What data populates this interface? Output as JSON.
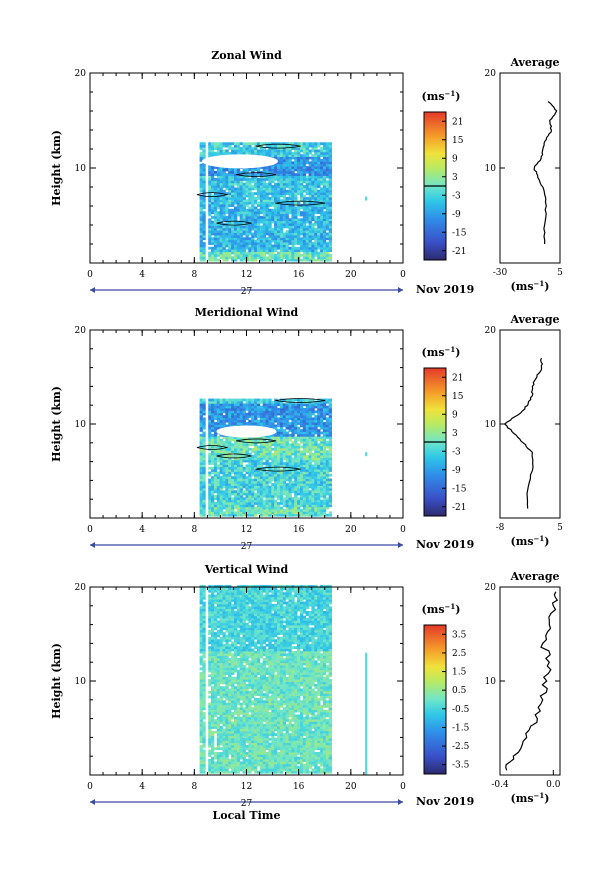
{
  "x_axis": {
    "ticks": [
      "0",
      "4",
      "8",
      "12",
      "16",
      "20",
      "0"
    ],
    "xlim": [
      0,
      24
    ],
    "day_label": "27",
    "date_label": "Nov 2019",
    "label": "Local Time"
  },
  "panels": [
    {
      "title": "Zonal Wind",
      "ylabel": "Height (km)",
      "y_ticks": [
        "20",
        "10"
      ],
      "ylim": [
        0,
        20
      ],
      "colorbar": {
        "unit_label": "(ms⁻¹)",
        "ticks": [
          "21",
          "15",
          "9",
          "3",
          "-3",
          "-9",
          "-15",
          "-21"
        ],
        "range": [
          -24,
          24
        ],
        "contour_level": 0
      },
      "profile": {
        "title": "Average",
        "y_ticks": [
          "20",
          "10"
        ],
        "x_ticks": [
          "-30",
          "5"
        ],
        "xlabel": "(ms⁻¹)",
        "xlim": [
          -30,
          5
        ]
      }
    },
    {
      "title": "Meridional Wind",
      "ylabel": "Height (km)",
      "y_ticks": [
        "20",
        "10"
      ],
      "ylim": [
        0,
        20
      ],
      "colorbar": {
        "unit_label": "(ms⁻¹)",
        "ticks": [
          "21",
          "15",
          "9",
          "3",
          "-3",
          "-9",
          "-15",
          "-21"
        ],
        "range": [
          -24,
          24
        ],
        "contour_level": 0
      },
      "profile": {
        "title": "Average",
        "y_ticks": [
          "20",
          "10"
        ],
        "x_ticks": [
          "-8",
          "5"
        ],
        "xlabel": "(ms⁻¹)",
        "xlim": [
          -8,
          5
        ]
      }
    },
    {
      "title": "Vertical Wind",
      "ylabel": "Height (km)",
      "y_ticks": [
        "20",
        "10"
      ],
      "ylim": [
        0,
        20
      ],
      "colorbar": {
        "unit_label": "(ms⁻¹)",
        "ticks": [
          "3.5",
          "2.5",
          "1.5",
          "0.5",
          "-0.5",
          "-1.5",
          "-2.5",
          "-3.5"
        ],
        "range": [
          -4,
          4
        ]
      },
      "profile": {
        "title": "Average",
        "y_ticks": [
          "20",
          "10"
        ],
        "x_ticks": [
          "-0.4",
          "0.0"
        ],
        "xlabel": "(ms⁻¹)",
        "xlim": [
          -0.4,
          0.05
        ]
      }
    }
  ],
  "chart_data": [
    {
      "type": "heatmap",
      "title": "Zonal Wind",
      "xlabel": "Local Time",
      "ylabel": "Height (km)",
      "xlim": [
        0,
        24
      ],
      "ylim": [
        0,
        20
      ],
      "colorbar_range": [
        -24,
        24
      ],
      "observation_window_hours": [
        8,
        18.5
      ],
      "data_top_km": 12.5,
      "layers": [
        {
          "height_km": [
            1,
            6
          ],
          "value": -6
        },
        {
          "height_km": [
            6,
            9
          ],
          "value": -5
        },
        {
          "height_km": [
            9,
            11
          ],
          "value": -10
        },
        {
          "height_km": [
            11,
            12.5
          ],
          "value": -4
        }
      ],
      "average_profile": {
        "height_km": [
          2,
          4,
          6,
          8,
          9,
          10,
          11,
          12,
          13,
          14,
          15,
          16,
          17
        ],
        "value": [
          -4,
          -4,
          -3,
          -5,
          -8,
          -10,
          -6,
          -5,
          -3,
          0,
          -1,
          3,
          -2
        ]
      }
    },
    {
      "type": "heatmap",
      "title": "Meridional Wind",
      "xlabel": "Local Time",
      "ylabel": "Height (km)",
      "xlim": [
        0,
        24
      ],
      "ylim": [
        0,
        20
      ],
      "colorbar_range": [
        -24,
        24
      ],
      "observation_window_hours": [
        8,
        18.5
      ],
      "data_top_km": 12.5,
      "layers": [
        {
          "height_km": [
            1,
            6
          ],
          "value": -3
        },
        {
          "height_km": [
            6,
            8.5
          ],
          "value": 0
        },
        {
          "height_km": [
            8.5,
            12
          ],
          "value": -10
        },
        {
          "height_km": [
            12,
            12.5
          ],
          "value": -4
        }
      ],
      "average_profile": {
        "height_km": [
          1,
          3,
          5,
          7,
          8,
          9,
          10,
          11,
          12,
          13,
          14,
          15,
          16,
          17
        ],
        "value": [
          -2,
          -2,
          -1,
          -1,
          -3,
          -5,
          -7,
          -4,
          -2,
          -1,
          -1,
          0,
          1,
          1
        ]
      }
    },
    {
      "type": "heatmap",
      "title": "Vertical Wind",
      "xlabel": "Local Time",
      "ylabel": "Height (km)",
      "xlim": [
        0,
        24
      ],
      "ylim": [
        0,
        20
      ],
      "colorbar_range": [
        -4,
        4
      ],
      "observation_window_hours": [
        8,
        18.5
      ],
      "data_top_km": 20,
      "layers": [
        {
          "height_km": [
            1,
            13
          ],
          "value": 0
        },
        {
          "height_km": [
            13,
            20
          ],
          "value": -0.5
        }
      ],
      "average_profile": {
        "height_km": [
          0.5,
          2,
          4,
          6,
          8,
          10,
          12,
          14,
          16,
          18,
          19.5
        ],
        "value": [
          -0.35,
          -0.3,
          -0.2,
          -0.12,
          -0.08,
          -0.05,
          -0.03,
          -0.08,
          -0.03,
          0.0,
          0.02
        ]
      }
    }
  ]
}
